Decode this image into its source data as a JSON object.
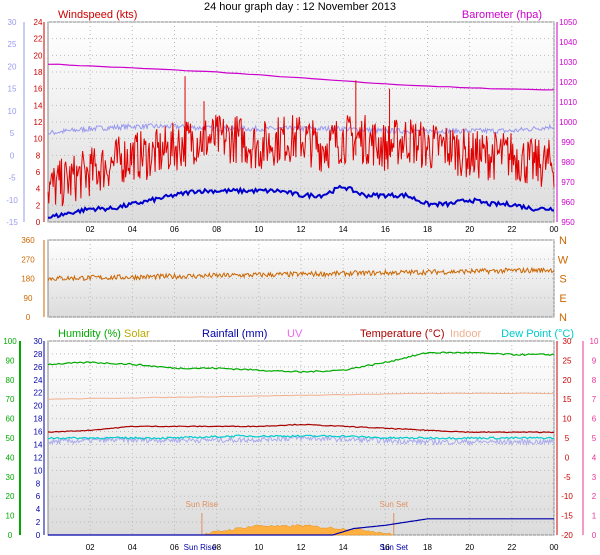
{
  "title": "24 hour graph day : 12 November 2013",
  "colors": {
    "wind": "#e00000",
    "baro": "#cc00cc",
    "temp_axis": "#cc0000",
    "gust": "#0000cc",
    "chill": "#9999ee",
    "dir": "#cc6600",
    "humidity": "#00aa00",
    "solar": "#bbaa00",
    "rain": "#0000aa",
    "uv": "#ee66ee",
    "temperature": "#aa0000",
    "indoor": "#f0b090",
    "dewpoint": "#00cccc",
    "sun_label": "#e09060",
    "solar_fill": "#ffb040",
    "humidity_axis": "#00aa00",
    "pink_axis": "#ee3399"
  },
  "chart_data": [
    {
      "type": "line",
      "panel": "wind-baro",
      "labels": {
        "wind": "Windspeed (kts)",
        "baro": "Barometer (hpa)"
      },
      "x_ticks": [
        "02",
        "04",
        "06",
        "08",
        "10",
        "12",
        "14",
        "16",
        "18",
        "20",
        "22",
        "00"
      ],
      "left_axis_temp": {
        "ticks": [
          30,
          25,
          20,
          15,
          10,
          5,
          0,
          -5,
          -10,
          -15
        ],
        "ylim": [
          -15,
          30
        ]
      },
      "wind_axis": {
        "ticks": [
          24,
          22,
          20,
          18,
          16,
          14,
          12,
          10,
          8,
          6,
          4,
          2,
          0
        ],
        "ylim": [
          0,
          24
        ]
      },
      "baro_axis": {
        "ticks": [
          1050,
          1040,
          1030,
          1020,
          1010,
          1000,
          990,
          980,
          970,
          960,
          950
        ],
        "ylim": [
          950,
          1050
        ]
      },
      "series": [
        {
          "key": "baro",
          "x": [
            0,
            4,
            8,
            12,
            16,
            20,
            24
          ],
          "values": [
            1029,
            1027,
            1025,
            1022,
            1019,
            1017,
            1016
          ]
        },
        {
          "key": "chill",
          "x": [
            0,
            2,
            4,
            6,
            8,
            10,
            12,
            14,
            16,
            18,
            20,
            22,
            24
          ],
          "values": [
            5,
            6,
            6.5,
            6.5,
            6,
            6,
            6,
            6,
            5.5,
            5.5,
            5.5,
            5.5,
            6.5
          ]
        },
        {
          "key": "wind",
          "x": [
            0,
            1,
            2,
            3,
            4,
            5,
            6,
            7,
            8,
            9,
            10,
            11,
            12,
            13,
            14,
            15,
            16,
            17,
            18,
            19,
            20,
            21,
            22,
            23,
            24
          ],
          "values": [
            4,
            5,
            6,
            7,
            8,
            8,
            9,
            10,
            10,
            10,
            9,
            10,
            10,
            9,
            10,
            10,
            9,
            10,
            9,
            9,
            8,
            8,
            8,
            7,
            7
          ]
        },
        {
          "key": "gust",
          "x": [
            0,
            1,
            2,
            3,
            4,
            5,
            6,
            7,
            8,
            9,
            10,
            11,
            12,
            13,
            14,
            15,
            16,
            17,
            18,
            19,
            20,
            21,
            22,
            23,
            24
          ],
          "values": [
            -14,
            -13,
            -12,
            -12,
            -11,
            -10,
            -9,
            -8,
            -8,
            -8,
            -8,
            -8,
            -9,
            -9,
            -7,
            -9,
            -9,
            -9,
            -11,
            -11,
            -10,
            -11,
            -11,
            -12,
            -12
          ]
        }
      ]
    },
    {
      "type": "line",
      "panel": "direction",
      "y_ticks": [
        360,
        270,
        180,
        90,
        0
      ],
      "ylim": [
        0,
        360
      ],
      "right_labels": [
        "N",
        "W",
        "S",
        "E",
        "N"
      ],
      "series": [
        {
          "key": "dir",
          "x": [
            0,
            3,
            6,
            9,
            12,
            15,
            18,
            21,
            24
          ],
          "values": [
            180,
            185,
            190,
            195,
            200,
            205,
            210,
            215,
            220
          ]
        }
      ]
    },
    {
      "type": "line",
      "panel": "multi",
      "labels": {
        "humidity": "Humidity (%)",
        "solar": "Solar",
        "rain": "Rainfall (mm)",
        "uv": "UV",
        "temperature": "Temperature (°C)",
        "indoor": "Indoor",
        "dewpoint": "Dew Point (°C)",
        "sunrise": "Sun Rise",
        "sunset": "Sun Set"
      },
      "humidity_axis": {
        "ticks": [
          100,
          90,
          80,
          70,
          60,
          50,
          40,
          30,
          20,
          10,
          0
        ],
        "ylim": [
          0,
          100
        ]
      },
      "rain_axis": {
        "ticks": [
          30,
          28,
          26,
          24,
          22,
          20,
          18,
          16,
          14,
          12,
          10,
          8,
          6,
          4,
          2,
          0
        ],
        "ylim": [
          0,
          30
        ]
      },
      "temp_axis": {
        "ticks": [
          30,
          25,
          20,
          15,
          10,
          5,
          0,
          -5,
          -10,
          -15,
          -20
        ],
        "ylim": [
          -20,
          30
        ]
      },
      "uv_axis": {
        "ticks": [
          10,
          9,
          8,
          7,
          6,
          5,
          4,
          3,
          2,
          1,
          0
        ],
        "ylim": [
          0,
          10
        ]
      },
      "sunrise_hour": 7.3,
      "sunset_hour": 16.4,
      "series": [
        {
          "key": "humidity",
          "x": [
            0,
            2,
            4,
            6,
            8,
            10,
            12,
            14,
            16,
            18,
            20,
            22,
            24
          ],
          "values": [
            88,
            89,
            88,
            86,
            86,
            85,
            84,
            85,
            89,
            94,
            94,
            93,
            93
          ]
        },
        {
          "key": "indoor",
          "x": [
            0,
            6,
            12,
            18,
            24
          ],
          "values": [
            15,
            15.5,
            16,
            16.5,
            16.5
          ]
        },
        {
          "key": "temperature",
          "x": [
            0,
            2,
            4,
            6,
            8,
            10,
            12,
            14,
            16,
            18,
            20,
            22,
            24
          ],
          "values": [
            6.5,
            7,
            8,
            8,
            8,
            8,
            8.5,
            8,
            7.5,
            7,
            6.5,
            6.5,
            6.5
          ]
        },
        {
          "key": "dewpoint",
          "x": [
            0,
            3,
            6,
            9,
            12,
            14,
            16,
            18,
            20,
            22,
            24
          ],
          "values": [
            5,
            5,
            5,
            5.5,
            5.5,
            5.5,
            5,
            5,
            5,
            5,
            5
          ]
        },
        {
          "key": "chill2",
          "x": [
            0,
            3,
            6,
            9,
            12,
            15,
            18,
            21,
            24
          ],
          "values": [
            4,
            4.5,
            4.5,
            4.5,
            5,
            4.5,
            4,
            4,
            4
          ]
        },
        {
          "key": "rain",
          "x": [
            0,
            13.5,
            14,
            14.5,
            16,
            17,
            18,
            24
          ],
          "values": [
            0,
            0,
            0.5,
            1,
            1.5,
            2,
            2.5,
            2.5
          ]
        },
        {
          "key": "solar",
          "x": [
            7.3,
            8,
            9,
            10,
            11,
            12,
            13,
            14,
            15,
            16,
            16.4
          ],
          "values": [
            0,
            0.5,
            1,
            1.5,
            1.3,
            1.5,
            1.2,
            1,
            0.8,
            0.3,
            0
          ]
        }
      ]
    }
  ]
}
